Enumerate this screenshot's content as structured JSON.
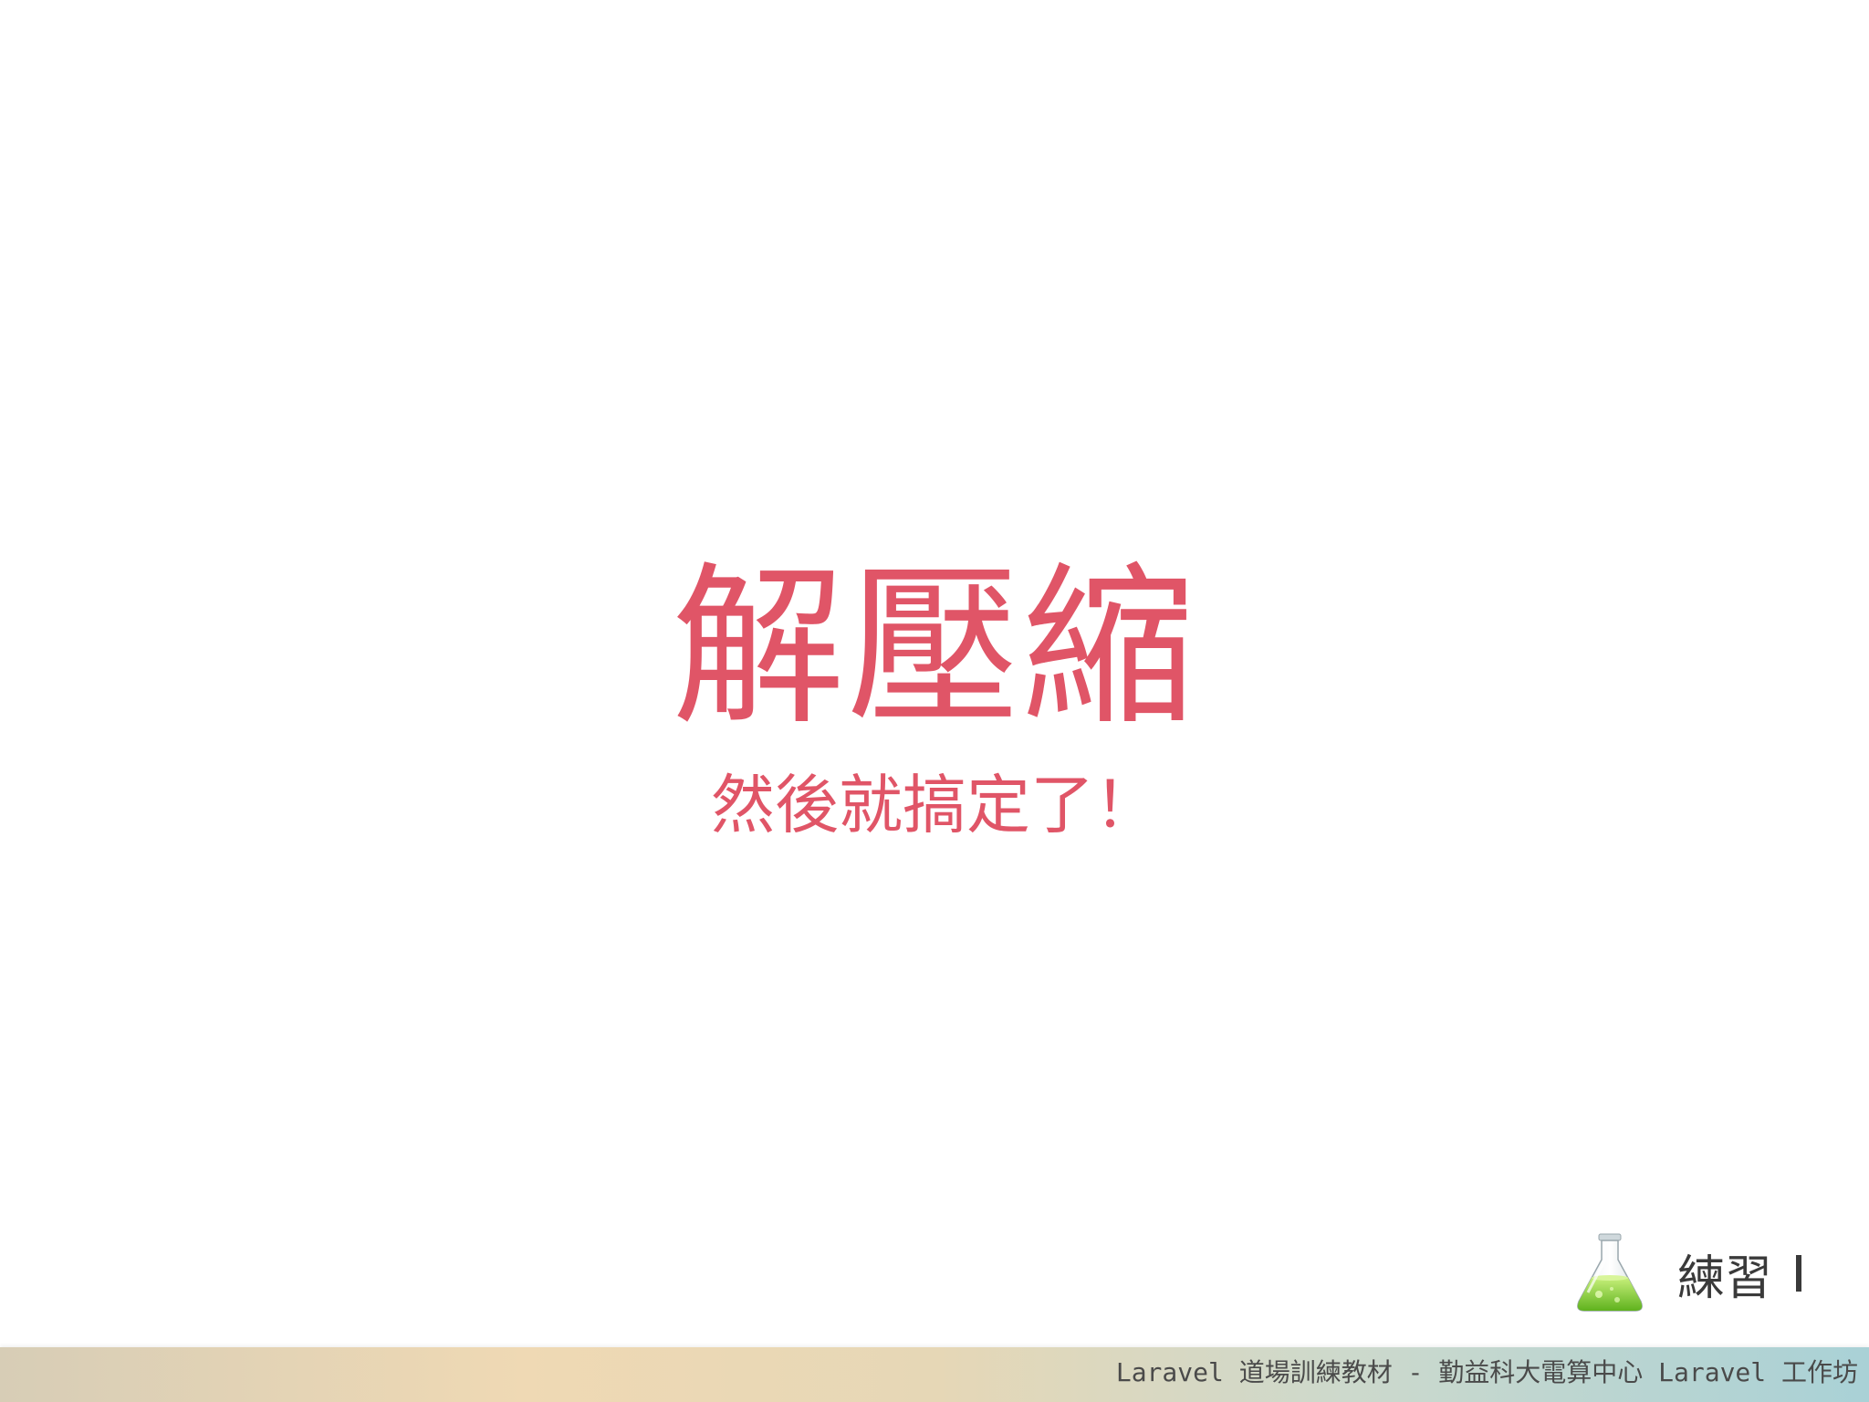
{
  "slide": {
    "title": "解壓縮",
    "subtitle": "然後就搞定了！"
  },
  "badge": {
    "icon": "flask-icon",
    "label": "練習",
    "accent_color": "#8cd63a"
  },
  "footer": {
    "text": "Laravel 道場訓練教材 - 勤益科大電算中心 Laravel 工作坊"
  },
  "colors": {
    "title": "#e05567",
    "footer_gradient_start": "#d7cdb6",
    "footer_gradient_end": "#a9d1d6"
  }
}
